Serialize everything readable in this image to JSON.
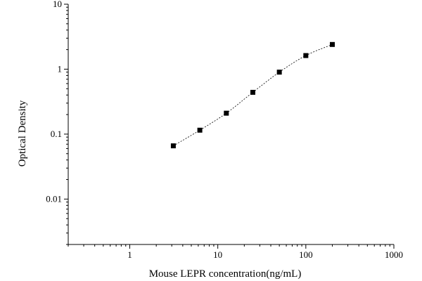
{
  "chart_data": {
    "type": "scatter",
    "xlabel": "Mouse LEPR concentration(ng/mL)",
    "ylabel": "Optical Density",
    "xscale": "log",
    "yscale": "log",
    "xlim": [
      0.2,
      1000
    ],
    "ylim": [
      0.002,
      10
    ],
    "x_ticks": [
      "1",
      "10",
      "100",
      "1000"
    ],
    "y_ticks": [
      "0.01",
      "0.1",
      "1",
      "10"
    ],
    "grid": false,
    "fit_line": "dashed",
    "series": [
      {
        "x": [
          3.125,
          6.25,
          12.5,
          25,
          50,
          100,
          200
        ],
        "y": [
          0.066,
          0.115,
          0.21,
          0.44,
          0.9,
          1.62,
          2.4
        ]
      }
    ]
  }
}
